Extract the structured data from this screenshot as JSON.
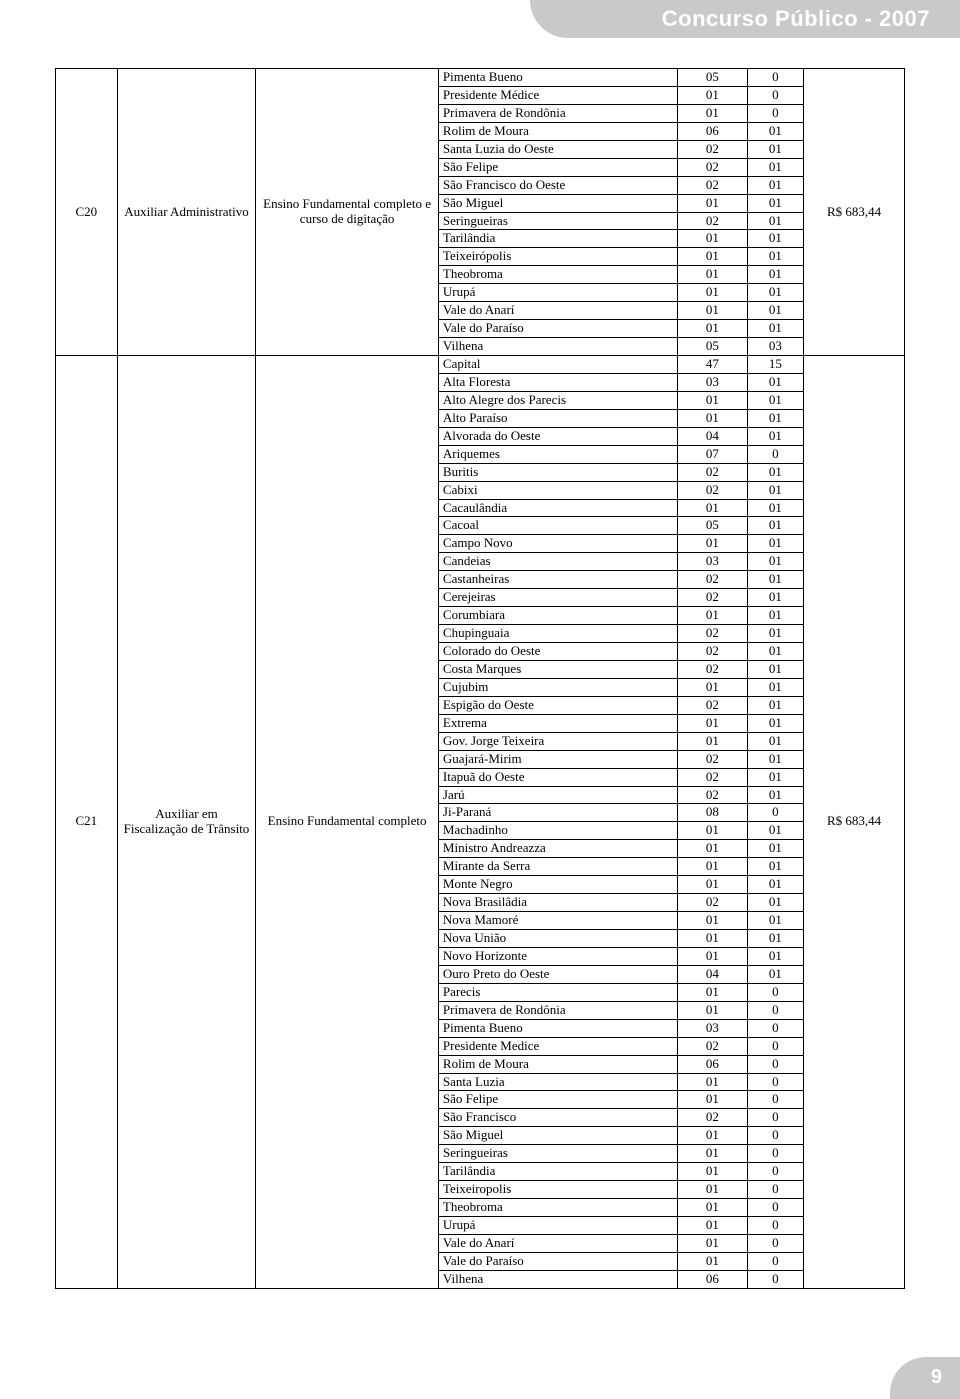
{
  "header": {
    "title": "Concurso Público - 2007"
  },
  "footer": {
    "page_number": "9"
  },
  "table": {
    "columns": [
      "code",
      "cargo",
      "escolaridade",
      "local",
      "vagas1",
      "vagas2",
      "salario"
    ],
    "groups": [
      {
        "code": "C20",
        "cargo": "Auxiliar Administrativo",
        "escolaridade": "Ensino Fundamental completo e curso de digitação",
        "salario": "R$ 683,44",
        "rows": [
          {
            "local": "Pimenta Bueno",
            "v1": "05",
            "v2": "0"
          },
          {
            "local": "Presidente Médice",
            "v1": "01",
            "v2": "0"
          },
          {
            "local": "Primavera de Rondônia",
            "v1": "01",
            "v2": "0"
          },
          {
            "local": "Rolim de Moura",
            "v1": "06",
            "v2": "01"
          },
          {
            "local": "Santa Luzia do Oeste",
            "v1": "02",
            "v2": "01"
          },
          {
            "local": "São Felipe",
            "v1": "02",
            "v2": "01"
          },
          {
            "local": "São Francisco do Oeste",
            "v1": "02",
            "v2": "01"
          },
          {
            "local": "São Miguel",
            "v1": "01",
            "v2": "01"
          },
          {
            "local": "Seringueiras",
            "v1": "02",
            "v2": "01"
          },
          {
            "local": "Tarilândia",
            "v1": "01",
            "v2": "01"
          },
          {
            "local": "Teixeirópolis",
            "v1": "01",
            "v2": "01"
          },
          {
            "local": "Theobroma",
            "v1": "01",
            "v2": "01"
          },
          {
            "local": "Urupá",
            "v1": "01",
            "v2": "01"
          },
          {
            "local": "Vale do Anarí",
            "v1": "01",
            "v2": "01"
          },
          {
            "local": "Vale do Paraíso",
            "v1": "01",
            "v2": "01"
          },
          {
            "local": "Vilhena",
            "v1": "05",
            "v2": "03"
          }
        ]
      },
      {
        "code": "C21",
        "cargo": "Auxiliar em Fiscalização de Trânsito",
        "escolaridade": "Ensino Fundamental completo",
        "salario": "R$ 683,44",
        "rows": [
          {
            "local": "Capital",
            "v1": "47",
            "v2": "15"
          },
          {
            "local": "Alta Floresta",
            "v1": "03",
            "v2": "01"
          },
          {
            "local": "Alto Alegre dos Parecis",
            "v1": "01",
            "v2": "01"
          },
          {
            "local": "Alto Paraíso",
            "v1": "01",
            "v2": "01"
          },
          {
            "local": "Alvorada do Oeste",
            "v1": "04",
            "v2": "01"
          },
          {
            "local": "Ariquemes",
            "v1": "07",
            "v2": "0"
          },
          {
            "local": "Buritis",
            "v1": "02",
            "v2": "01"
          },
          {
            "local": "Cabixi",
            "v1": "02",
            "v2": "01"
          },
          {
            "local": "Cacaulândia",
            "v1": "01",
            "v2": "01"
          },
          {
            "local": "Cacoal",
            "v1": "05",
            "v2": "01"
          },
          {
            "local": "Campo Novo",
            "v1": "01",
            "v2": "01"
          },
          {
            "local": "Candeias",
            "v1": "03",
            "v2": "01"
          },
          {
            "local": "Castanheiras",
            "v1": "02",
            "v2": "01"
          },
          {
            "local": "Cerejeiras",
            "v1": "02",
            "v2": "01"
          },
          {
            "local": "Corumbiara",
            "v1": "01",
            "v2": "01"
          },
          {
            "local": "Chupinguaia",
            "v1": "02",
            "v2": "01"
          },
          {
            "local": "Colorado do Oeste",
            "v1": "02",
            "v2": "01"
          },
          {
            "local": "Costa Marques",
            "v1": "02",
            "v2": "01"
          },
          {
            "local": "Cujubim",
            "v1": "01",
            "v2": "01"
          },
          {
            "local": "Espigão do Oeste",
            "v1": "02",
            "v2": "01"
          },
          {
            "local": "Extrema",
            "v1": "01",
            "v2": "01"
          },
          {
            "local": "Gov. Jorge Teixeira",
            "v1": "01",
            "v2": "01"
          },
          {
            "local": "Guajará-Mirim",
            "v1": "02",
            "v2": "01"
          },
          {
            "local": "Itapuã do Oeste",
            "v1": "02",
            "v2": "01"
          },
          {
            "local": "Jarú",
            "v1": "02",
            "v2": "01"
          },
          {
            "local": "Ji-Paraná",
            "v1": "08",
            "v2": "0"
          },
          {
            "local": "Machadinho",
            "v1": "01",
            "v2": "01"
          },
          {
            "local": "Ministro Andreazza",
            "v1": "01",
            "v2": "01"
          },
          {
            "local": "Mirante da Serra",
            "v1": "01",
            "v2": "01"
          },
          {
            "local": "Monte Negro",
            "v1": "01",
            "v2": "01"
          },
          {
            "local": "Nova Brasilâdia",
            "v1": "02",
            "v2": "01"
          },
          {
            "local": "Nova Mamoré",
            "v1": "01",
            "v2": "01"
          },
          {
            "local": "Nova União",
            "v1": "01",
            "v2": "01"
          },
          {
            "local": "Novo Horizonte",
            "v1": "01",
            "v2": "01"
          },
          {
            "local": "Ouro Preto do Oeste",
            "v1": "04",
            "v2": "01"
          },
          {
            "local": "Parecis",
            "v1": "01",
            "v2": "0"
          },
          {
            "local": "Primavera de Rondônia",
            "v1": "01",
            "v2": "0"
          },
          {
            "local": "Pimenta Bueno",
            "v1": "03",
            "v2": "0"
          },
          {
            "local": "Presidente Medice",
            "v1": "02",
            "v2": "0"
          },
          {
            "local": "Rolim de Moura",
            "v1": "06",
            "v2": "0"
          },
          {
            "local": "Santa Luzia",
            "v1": "01",
            "v2": "0"
          },
          {
            "local": "São Felipe",
            "v1": "01",
            "v2": "0"
          },
          {
            "local": "São Francisco",
            "v1": "02",
            "v2": "0"
          },
          {
            "local": "São Miguel",
            "v1": "01",
            "v2": "0"
          },
          {
            "local": "Seringueiras",
            "v1": "01",
            "v2": "0"
          },
          {
            "local": "Tarilândia",
            "v1": "01",
            "v2": "0"
          },
          {
            "local": "Teixeiropolis",
            "v1": "01",
            "v2": "0"
          },
          {
            "local": "Theobroma",
            "v1": "01",
            "v2": "0"
          },
          {
            "local": "Urupá",
            "v1": "01",
            "v2": "0"
          },
          {
            "local": "Vale do Anarí",
            "v1": "01",
            "v2": "0"
          },
          {
            "local": "Vale do Paraíso",
            "v1": "01",
            "v2": "0"
          },
          {
            "local": "Vilhena",
            "v1": "06",
            "v2": "0"
          }
        ]
      }
    ]
  }
}
